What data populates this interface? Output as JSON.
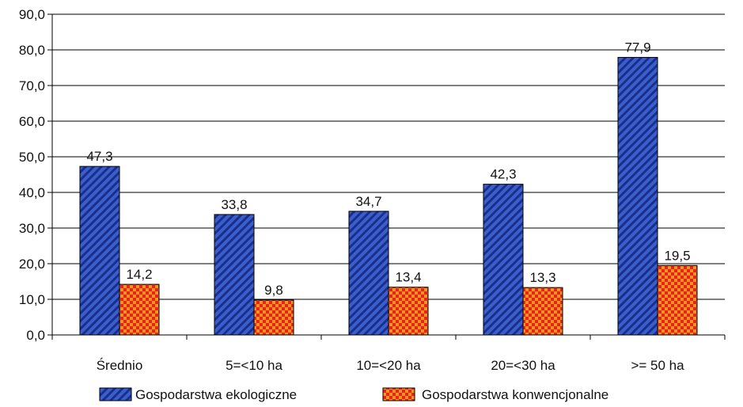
{
  "chart_data": {
    "type": "bar",
    "categories": [
      "Średnio",
      "5=<10 ha",
      "10=<20 ha",
      "20=<30 ha",
      ">= 50 ha"
    ],
    "series": [
      {
        "name": "Gospodarstwa ekologiczne",
        "values": [
          47.3,
          33.8,
          34.7,
          42.3,
          77.9
        ],
        "labels": [
          "47,3",
          "33,8",
          "34,7",
          "42,3",
          "77,9"
        ],
        "color": "#3a5fcd",
        "pattern": "diagonal-stripes"
      },
      {
        "name": "Gospodarstwa konwencjonalne",
        "values": [
          14.2,
          9.8,
          13.4,
          13.3,
          19.5
        ],
        "labels": [
          "14,2",
          "9,8",
          "13,4",
          "13,3",
          "19,5"
        ],
        "color": "#f7941d",
        "pattern": "checkerboard"
      }
    ],
    "ylim": [
      0,
      90
    ],
    "yticks": [
      "0,0",
      "10,0",
      "20,0",
      "30,0",
      "40,0",
      "50,0",
      "60,0",
      "70,0",
      "80,0",
      "90,0"
    ],
    "grid": true,
    "legend_position": "bottom"
  }
}
